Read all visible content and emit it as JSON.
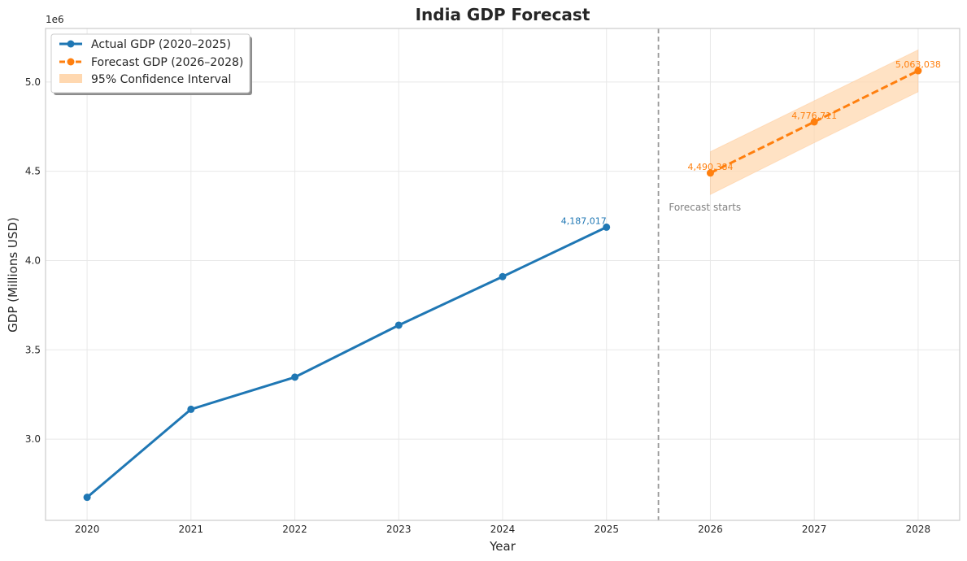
{
  "chart_data": {
    "type": "line",
    "title": "India GDP Forecast",
    "xlabel": "Year",
    "ylabel": "GDP (Millions USD)",
    "y_offset_label": "1e6",
    "xlim": [
      2019.6,
      2028.4
    ],
    "ylim": [
      2545000,
      5300000
    ],
    "x_ticks": [
      2020,
      2021,
      2022,
      2023,
      2024,
      2025,
      2026,
      2027,
      2028
    ],
    "y_ticks": [
      3000000,
      3500000,
      4000000,
      4500000,
      5000000
    ],
    "y_tick_labels": [
      "3.0",
      "3.5",
      "4.0",
      "4.5",
      "5.0"
    ],
    "grid": true,
    "legend_position": "top-left",
    "colors": {
      "actual": "#1f77b4",
      "forecast": "#ff7f0e",
      "ci_fill": "#ffd8b0",
      "divider": "#999999"
    },
    "series": [
      {
        "name": "Actual GDP (2020–2025)",
        "style": "solid",
        "x": [
          2020,
          2021,
          2022,
          2023,
          2024,
          2025
        ],
        "y": [
          2674000,
          3167000,
          3347000,
          3638000,
          3910000,
          4187017
        ]
      },
      {
        "name": "Forecast GDP (2026–2028)",
        "style": "dashed",
        "x": [
          2026,
          2027,
          2028
        ],
        "y": [
          4490384,
          4776711,
          5063038
        ]
      }
    ],
    "confidence_interval": {
      "name": "95% Confidence Interval",
      "x": [
        2026,
        2027,
        2028
      ],
      "lower": [
        4370000,
        4660000,
        4945000
      ],
      "upper": [
        4610000,
        4895000,
        5180000
      ]
    },
    "data_labels": [
      {
        "series": "actual",
        "x": 2025,
        "y": 4187017,
        "text": "4,187,017"
      },
      {
        "series": "forecast",
        "x": 2026,
        "y": 4490384,
        "text": "4,490,384"
      },
      {
        "series": "forecast",
        "x": 2027,
        "y": 4776711,
        "text": "4,776,711"
      },
      {
        "series": "forecast",
        "x": 2028,
        "y": 5063038,
        "text": "5,063,038"
      }
    ],
    "divider_x": 2025.5,
    "annotation": {
      "text": "Forecast starts",
      "x": 2025.6,
      "y": 4280000
    }
  }
}
